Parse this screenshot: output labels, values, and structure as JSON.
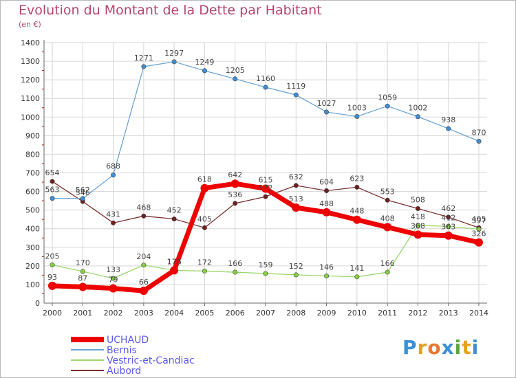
{
  "title": "Evolution du Montant de la Dette par Habitant",
  "subtitle": "(en €)",
  "logo": {
    "text": "Proxiti",
    "colors": [
      "#3a8fd6",
      "#e8a020",
      "#e87830",
      "#3a8fd6",
      "#5aa83c",
      "#e8a020",
      "#3a8fd6"
    ]
  },
  "chart_data": {
    "type": "line",
    "x": [
      "2000",
      "2001",
      "2002",
      "2003",
      "2004",
      "2005",
      "2006",
      "2007",
      "2008",
      "2009",
      "2010",
      "2011",
      "2012",
      "2013",
      "2014"
    ],
    "yticks": [
      0,
      100,
      200,
      300,
      400,
      500,
      600,
      700,
      800,
      900,
      1000,
      1100,
      1200,
      1300,
      1400
    ],
    "ylim": [
      0,
      1400
    ],
    "grid": true,
    "legend_position": "bottom-left",
    "series": [
      {
        "name": "UCHAUD",
        "color": "#ee0000",
        "dot": "#ee0000",
        "width": 7,
        "values": [
          93,
          87,
          79,
          66,
          176,
          618,
          642,
          615,
          513,
          488,
          448,
          408,
          368,
          363,
          326
        ],
        "labels": [
          "93",
          "87",
          "79",
          "66",
          "176",
          "618",
          "642",
          "615",
          "513",
          "488",
          "448",
          "408",
          "368",
          "363",
          "326"
        ]
      },
      {
        "name": "Bernis",
        "color": "#6aa4d4",
        "dot": "#3f8ed2",
        "width": 1.3,
        "values": [
          563,
          562,
          688,
          1271,
          1297,
          1249,
          1205,
          1160,
          1119,
          1027,
          1003,
          1059,
          1002,
          938,
          870
        ],
        "labels": [
          "563",
          "562",
          "688",
          "1271",
          "1297",
          "1249",
          "1205",
          "1160",
          "1119",
          "1027",
          "1003",
          "1059",
          "1002",
          "938",
          "870"
        ]
      },
      {
        "name": "Vestric-et-Candiac",
        "color": "#9ad86e",
        "dot": "#84d040",
        "width": 1.3,
        "values": [
          205,
          170,
          133,
          204,
          176,
          172,
          166,
          159,
          152,
          146,
          141,
          166,
          418,
          412,
          397
        ],
        "labels": [
          "205",
          "170",
          "133",
          "204",
          "176",
          "172",
          "166",
          "159",
          "152",
          "146",
          "141",
          "166",
          "418",
          "412",
          "397"
        ]
      },
      {
        "name": "Aubord",
        "color": "#7a3030",
        "dot": "#6e2020",
        "width": 1.3,
        "values": [
          654,
          546,
          431,
          468,
          452,
          405,
          536,
          572,
          632,
          604,
          623,
          553,
          508,
          462,
          405
        ],
        "labels": [
          "654",
          "546",
          "431",
          "468",
          "452",
          "405",
          "536",
          "572",
          "632",
          "604",
          "623",
          "553",
          "508",
          "462",
          "405"
        ]
      }
    ]
  }
}
